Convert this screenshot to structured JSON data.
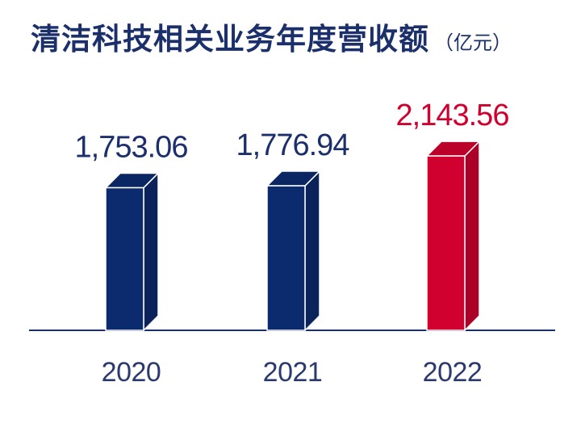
{
  "chart_data": {
    "type": "bar",
    "title": "清洁科技相关业务年度营收额",
    "unit": "（亿元）",
    "categories": [
      "2020",
      "2021",
      "2022"
    ],
    "values": [
      1753.06,
      1776.94,
      2143.56
    ],
    "value_labels": [
      "1,753.06",
      "1,776.94",
      "2,143.56"
    ],
    "bar_colors": [
      "#0c2b6e",
      "#0c2b6e",
      "#d0002f"
    ],
    "value_label_colors": [
      "#1b2f6b",
      "#1b2f6b",
      "#d0002f"
    ],
    "baseline_color": "#1b2f6b",
    "year_label_color": "#2b3a6e",
    "grid": false,
    "legend": "none"
  }
}
